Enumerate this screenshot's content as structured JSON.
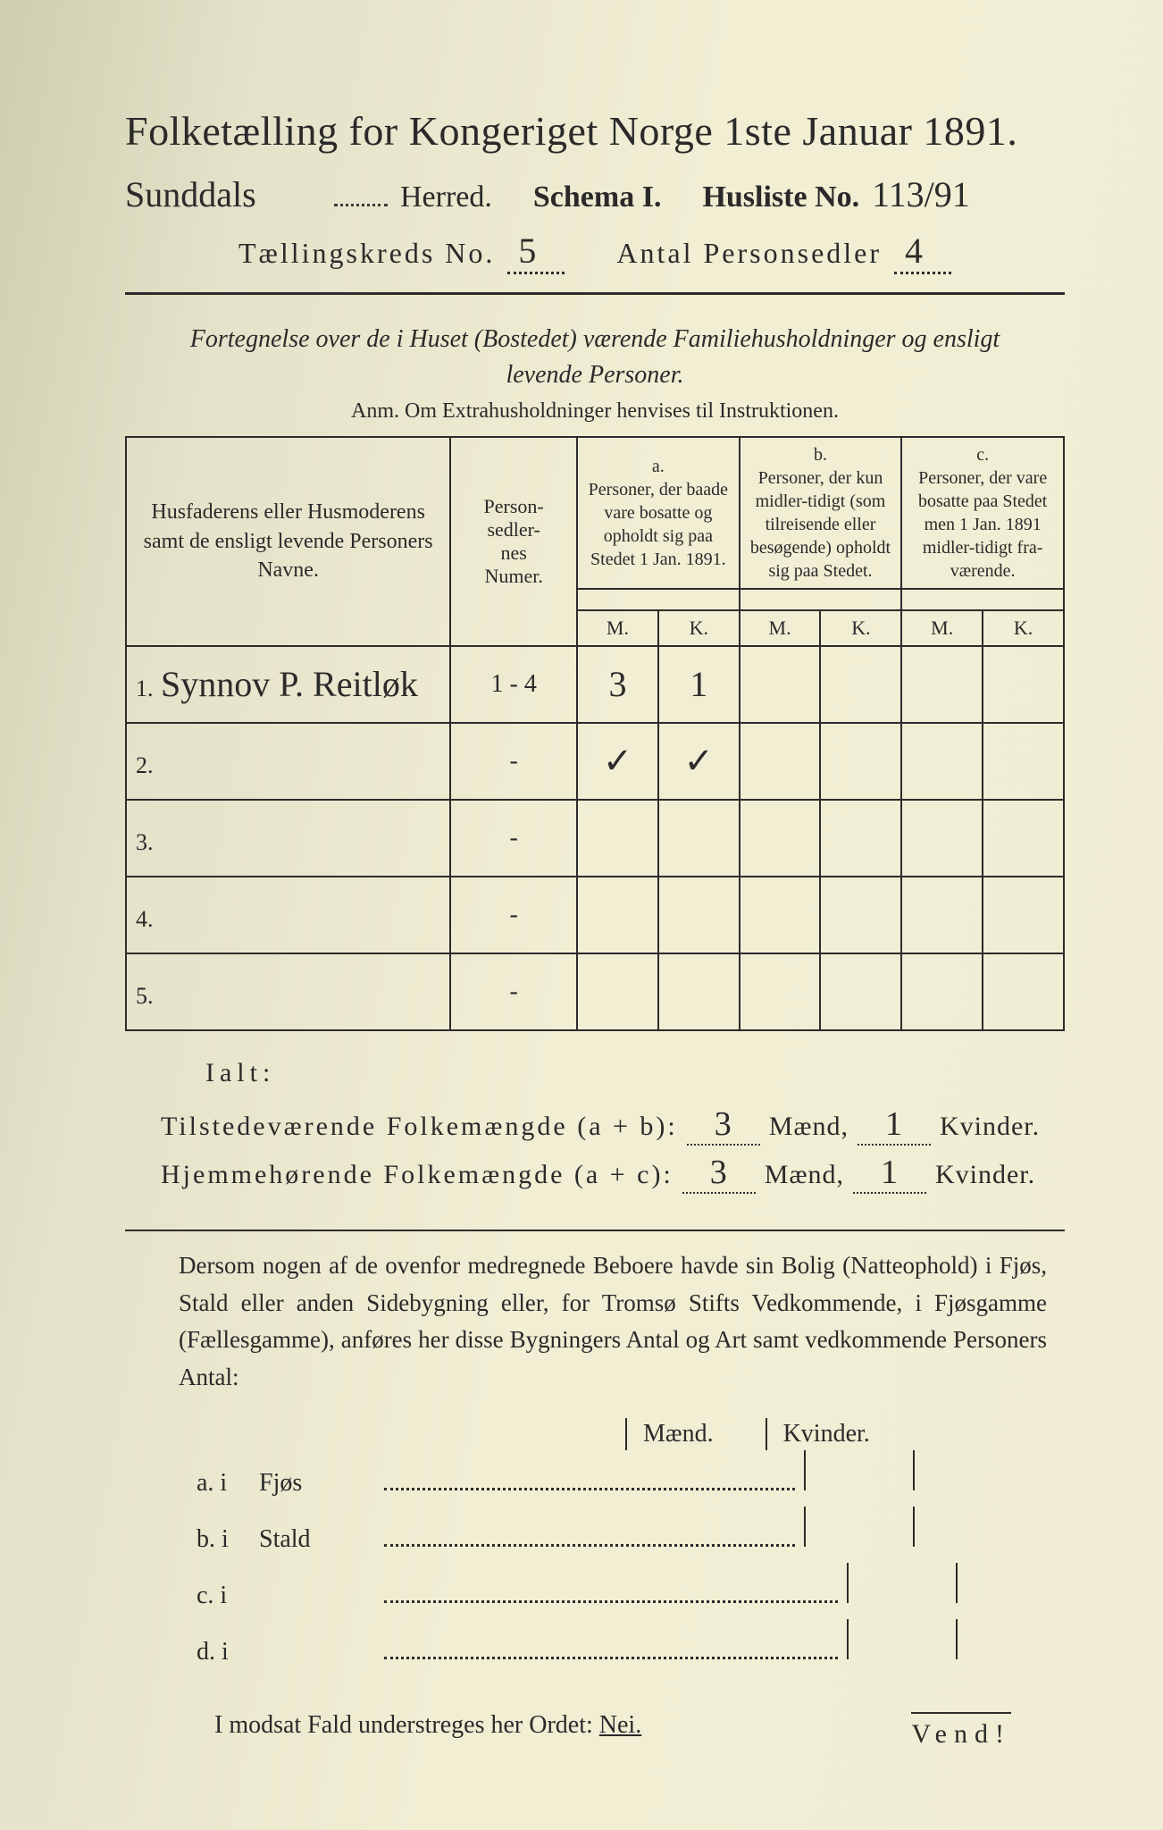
{
  "title": "Folketælling for Kongeriget Norge 1ste Januar 1891.",
  "line2": {
    "herred_handwritten": "Sunddals",
    "herred_label": "Herred.",
    "schema_label": "Schema I.",
    "husliste_label": "Husliste No.",
    "husliste_no": "113/91"
  },
  "line3": {
    "kreds_label": "Tællingskreds No.",
    "kreds_no": "5",
    "antal_label": "Antal Personsedler",
    "antal_val": "4"
  },
  "subtitle": "Fortegnelse over de i Huset (Bostedet) værende Familiehusholdninger og ensligt levende Personer.",
  "anm": "Anm.   Om Extrahusholdninger henvises til Instruktionen.",
  "table": {
    "head_names": "Husfaderens eller Husmoderens samt de ensligt levende Personers Navne.",
    "head_numer": "Person-\nsedler-\nnes\nNumer.",
    "group_a_letter": "a.",
    "group_a": "Personer, der baade vare bosatte og opholdt sig paa Stedet 1 Jan. 1891.",
    "group_b_letter": "b.",
    "group_b": "Personer, der kun midler-tidigt (som tilreisende eller besøgende) opholdt sig paa Stedet.",
    "group_c_letter": "c.",
    "group_c": "Personer, der vare bosatte paa Stedet men 1 Jan. 1891 midler-tidigt fra-værende.",
    "M": "M.",
    "K": "K.",
    "rows": [
      {
        "n": "1.",
        "name": "Synnov P. Reitløk",
        "numer": "1 - 4",
        "aM": "3",
        "aK": "1",
        "bM": "",
        "bK": "",
        "cM": "",
        "cK": ""
      },
      {
        "n": "2.",
        "name": "",
        "numer": "-",
        "aM": "✓",
        "aK": "✓",
        "bM": "",
        "bK": "",
        "cM": "",
        "cK": ""
      },
      {
        "n": "3.",
        "name": "",
        "numer": "-",
        "aM": "",
        "aK": "",
        "bM": "",
        "bK": "",
        "cM": "",
        "cK": ""
      },
      {
        "n": "4.",
        "name": "",
        "numer": "-",
        "aM": "",
        "aK": "",
        "bM": "",
        "bK": "",
        "cM": "",
        "cK": ""
      },
      {
        "n": "5.",
        "name": "",
        "numer": "-",
        "aM": "",
        "aK": "",
        "bM": "",
        "bK": "",
        "cM": "",
        "cK": ""
      }
    ]
  },
  "ialt": "Ialt:",
  "sum1": {
    "label": "Tilstedeværende Folkemængde (a + b):",
    "maend": "3",
    "maend_label": "Mænd,",
    "kvinder": "1",
    "kvinder_label": "Kvinder."
  },
  "sum2": {
    "label": "Hjemmehørende Folkemængde (a + c):",
    "maend": "3",
    "maend_label": "Mænd,",
    "kvinder": "1",
    "kvinder_label": "Kvinder."
  },
  "para": "Dersom nogen af de ovenfor medregnede Beboere havde sin Bolig (Natteophold) i Fjøs, Stald eller anden Sidebygning eller, for Tromsø Stifts Vedkommende, i Fjøsgamme (Fællesgamme), anføres her disse Bygningers Antal og Art samt vedkommende Personers Antal:",
  "mk": {
    "M": "Mænd.",
    "K": "Kvinder."
  },
  "abcd": {
    "a": {
      "lead": "a.  i",
      "label": "Fjøs"
    },
    "b": {
      "lead": "b.  i",
      "label": "Stald"
    },
    "c": {
      "lead": "c.  i",
      "label": ""
    },
    "d": {
      "lead": "d.  i",
      "label": ""
    }
  },
  "nei": "I modsat Fald understreges her Ordet: ",
  "nei_word": "Nei.",
  "vend": "Vend!",
  "colors": {
    "ink": "#2a2a2a",
    "paper_light": "#f1eed4",
    "paper_shadow": "#cfceb0"
  },
  "fonts": {
    "serif": "Georgia",
    "script": "Brush Script MT"
  }
}
